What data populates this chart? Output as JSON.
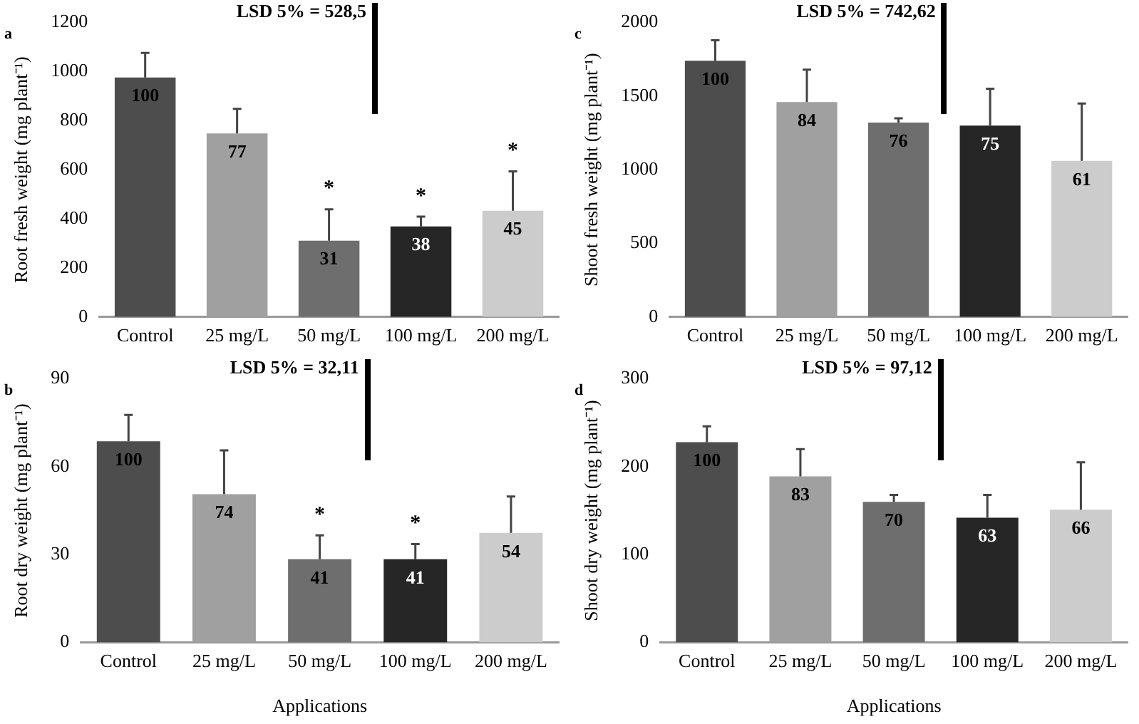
{
  "chart_data": [
    {
      "type": "bar",
      "ylabel": "Root fresh weight (mg plant⁻¹)",
      "categories": [
        "Control",
        "25 mg/L",
        "50 mg/L",
        "100 mg/L",
        "200 mg/L"
      ],
      "values": [
        976,
        748,
        311,
        369,
        433
      ],
      "colors": [
        "#4d4d4d",
        "#a0a0a0",
        "#6e6e6e",
        "#262626",
        "#cccccc"
      ],
      "errors": [
        [
          976,
          1076
        ],
        [
          748,
          848
        ],
        [
          311,
          439
        ],
        [
          369,
          409
        ],
        [
          433,
          593
        ]
      ],
      "ylim": [
        0,
        1200
      ],
      "yticks": [
        0,
        200,
        400,
        600,
        800,
        1000,
        1200
      ],
      "grid": false,
      "legend": false,
      "annotations": [
        "a",
        "LSD 5% = 528,5",
        {
          "text": "100",
          "x": "Control",
          "y": 976
        },
        {
          "text": "77",
          "x": "25 mg/L",
          "y": 748
        },
        {
          "text": "31",
          "x": "50 mg/L",
          "y": 311
        },
        {
          "text": "38",
          "x": "100 mg/L",
          "y": 369
        },
        {
          "text": "45",
          "x": "200 mg/L",
          "y": 433
        },
        {
          "text": "*",
          "x": "50 mg/L",
          "y": 439
        },
        {
          "text": "*",
          "x": "100 mg/L",
          "y": 409
        },
        {
          "text": "*",
          "x": "200 mg/L",
          "y": 593
        }
      ]
    },
    {
      "type": "bar",
      "ylabel": "Shoot fresh weight (mg plant⁻¹)",
      "categories": [
        "Control",
        "25 mg/L",
        "50 mg/L",
        "100 mg/L",
        "200 mg/L"
      ],
      "values": [
        1740,
        1460,
        1320,
        1300,
        1060
      ],
      "colors": [
        "#4d4d4d",
        "#a0a0a0",
        "#6e6e6e",
        "#262626",
        "#cccccc"
      ],
      "errors": [
        [
          1740,
          1880
        ],
        [
          1460,
          1680
        ],
        [
          1320,
          1350
        ],
        [
          1300,
          1550
        ],
        [
          1060,
          1450
        ]
      ],
      "ylim": [
        0,
        2000
      ],
      "yticks": [
        0,
        500,
        1000,
        1500,
        2000
      ],
      "grid": false,
      "legend": false,
      "annotations": [
        "c",
        "LSD 5% = 742,62",
        {
          "text": "100",
          "x": "Control",
          "y": 1740
        },
        {
          "text": "84",
          "x": "25 mg/L",
          "y": 1460
        },
        {
          "text": "76",
          "x": "50 mg/L",
          "y": 1320
        },
        {
          "text": "75",
          "x": "100 mg/L",
          "y": 1300
        },
        {
          "text": "61",
          "x": "200 mg/L",
          "y": 1060
        }
      ]
    },
    {
      "type": "bar",
      "xlabel": "Applications",
      "ylabel": "Root dry weight (mg plant⁻¹)",
      "categories": [
        "Control",
        "25 mg/L",
        "50 mg/L",
        "100 mg/L",
        "200 mg/L"
      ],
      "values": [
        68.7,
        50.6,
        28.4,
        28.4,
        37.4
      ],
      "colors": [
        "#4d4d4d",
        "#a0a0a0",
        "#6e6e6e",
        "#262626",
        "#cccccc"
      ],
      "errors": [
        [
          68.7,
          77.7
        ],
        [
          50.6,
          65.6
        ],
        [
          28.4,
          36.6
        ],
        [
          28.4,
          33.6
        ],
        [
          37.4,
          49.8
        ]
      ],
      "ylim": [
        0,
        90
      ],
      "yticks": [
        0,
        30,
        60,
        90
      ],
      "grid": false,
      "legend": false,
      "annotations": [
        "b",
        "LSD 5% = 32,11",
        {
          "text": "100",
          "x": "Control",
          "y": 68.7
        },
        {
          "text": "74",
          "x": "25 mg/L",
          "y": 50.6
        },
        {
          "text": "41",
          "x": "50 mg/L",
          "y": 28.4
        },
        {
          "text": "41",
          "x": "100 mg/L",
          "y": 28.4
        },
        {
          "text": "54",
          "x": "200 mg/L",
          "y": 37.4
        },
        {
          "text": "*",
          "x": "50 mg/L",
          "y": 36.6
        },
        {
          "text": "*",
          "x": "100 mg/L",
          "y": 33.6
        }
      ]
    },
    {
      "type": "bar",
      "xlabel": "Applications",
      "ylabel": "Shoot dry weight (mg plant⁻¹)",
      "categories": [
        "Control",
        "25 mg/L",
        "50 mg/L",
        "100 mg/L",
        "200 mg/L"
      ],
      "values": [
        228,
        189,
        160,
        142,
        151
      ],
      "colors": [
        "#4d4d4d",
        "#a0a0a0",
        "#6e6e6e",
        "#262626",
        "#cccccc"
      ],
      "errors": [
        [
          228,
          246
        ],
        [
          189,
          220
        ],
        [
          160,
          168
        ],
        [
          142,
          168
        ],
        [
          151,
          205
        ]
      ],
      "ylim": [
        0,
        300
      ],
      "yticks": [
        0,
        100,
        200,
        300
      ],
      "grid": false,
      "legend": false,
      "annotations": [
        "d",
        "LSD 5% = 97,12",
        {
          "text": "100",
          "x": "Control",
          "y": 228
        },
        {
          "text": "83",
          "x": "25 mg/L",
          "y": 189
        },
        {
          "text": "70",
          "x": "50 mg/L",
          "y": 160
        },
        {
          "text": "63",
          "x": "100 mg/L",
          "y": 142
        },
        {
          "text": "66",
          "x": "200 mg/L",
          "y": 151
        }
      ]
    }
  ]
}
